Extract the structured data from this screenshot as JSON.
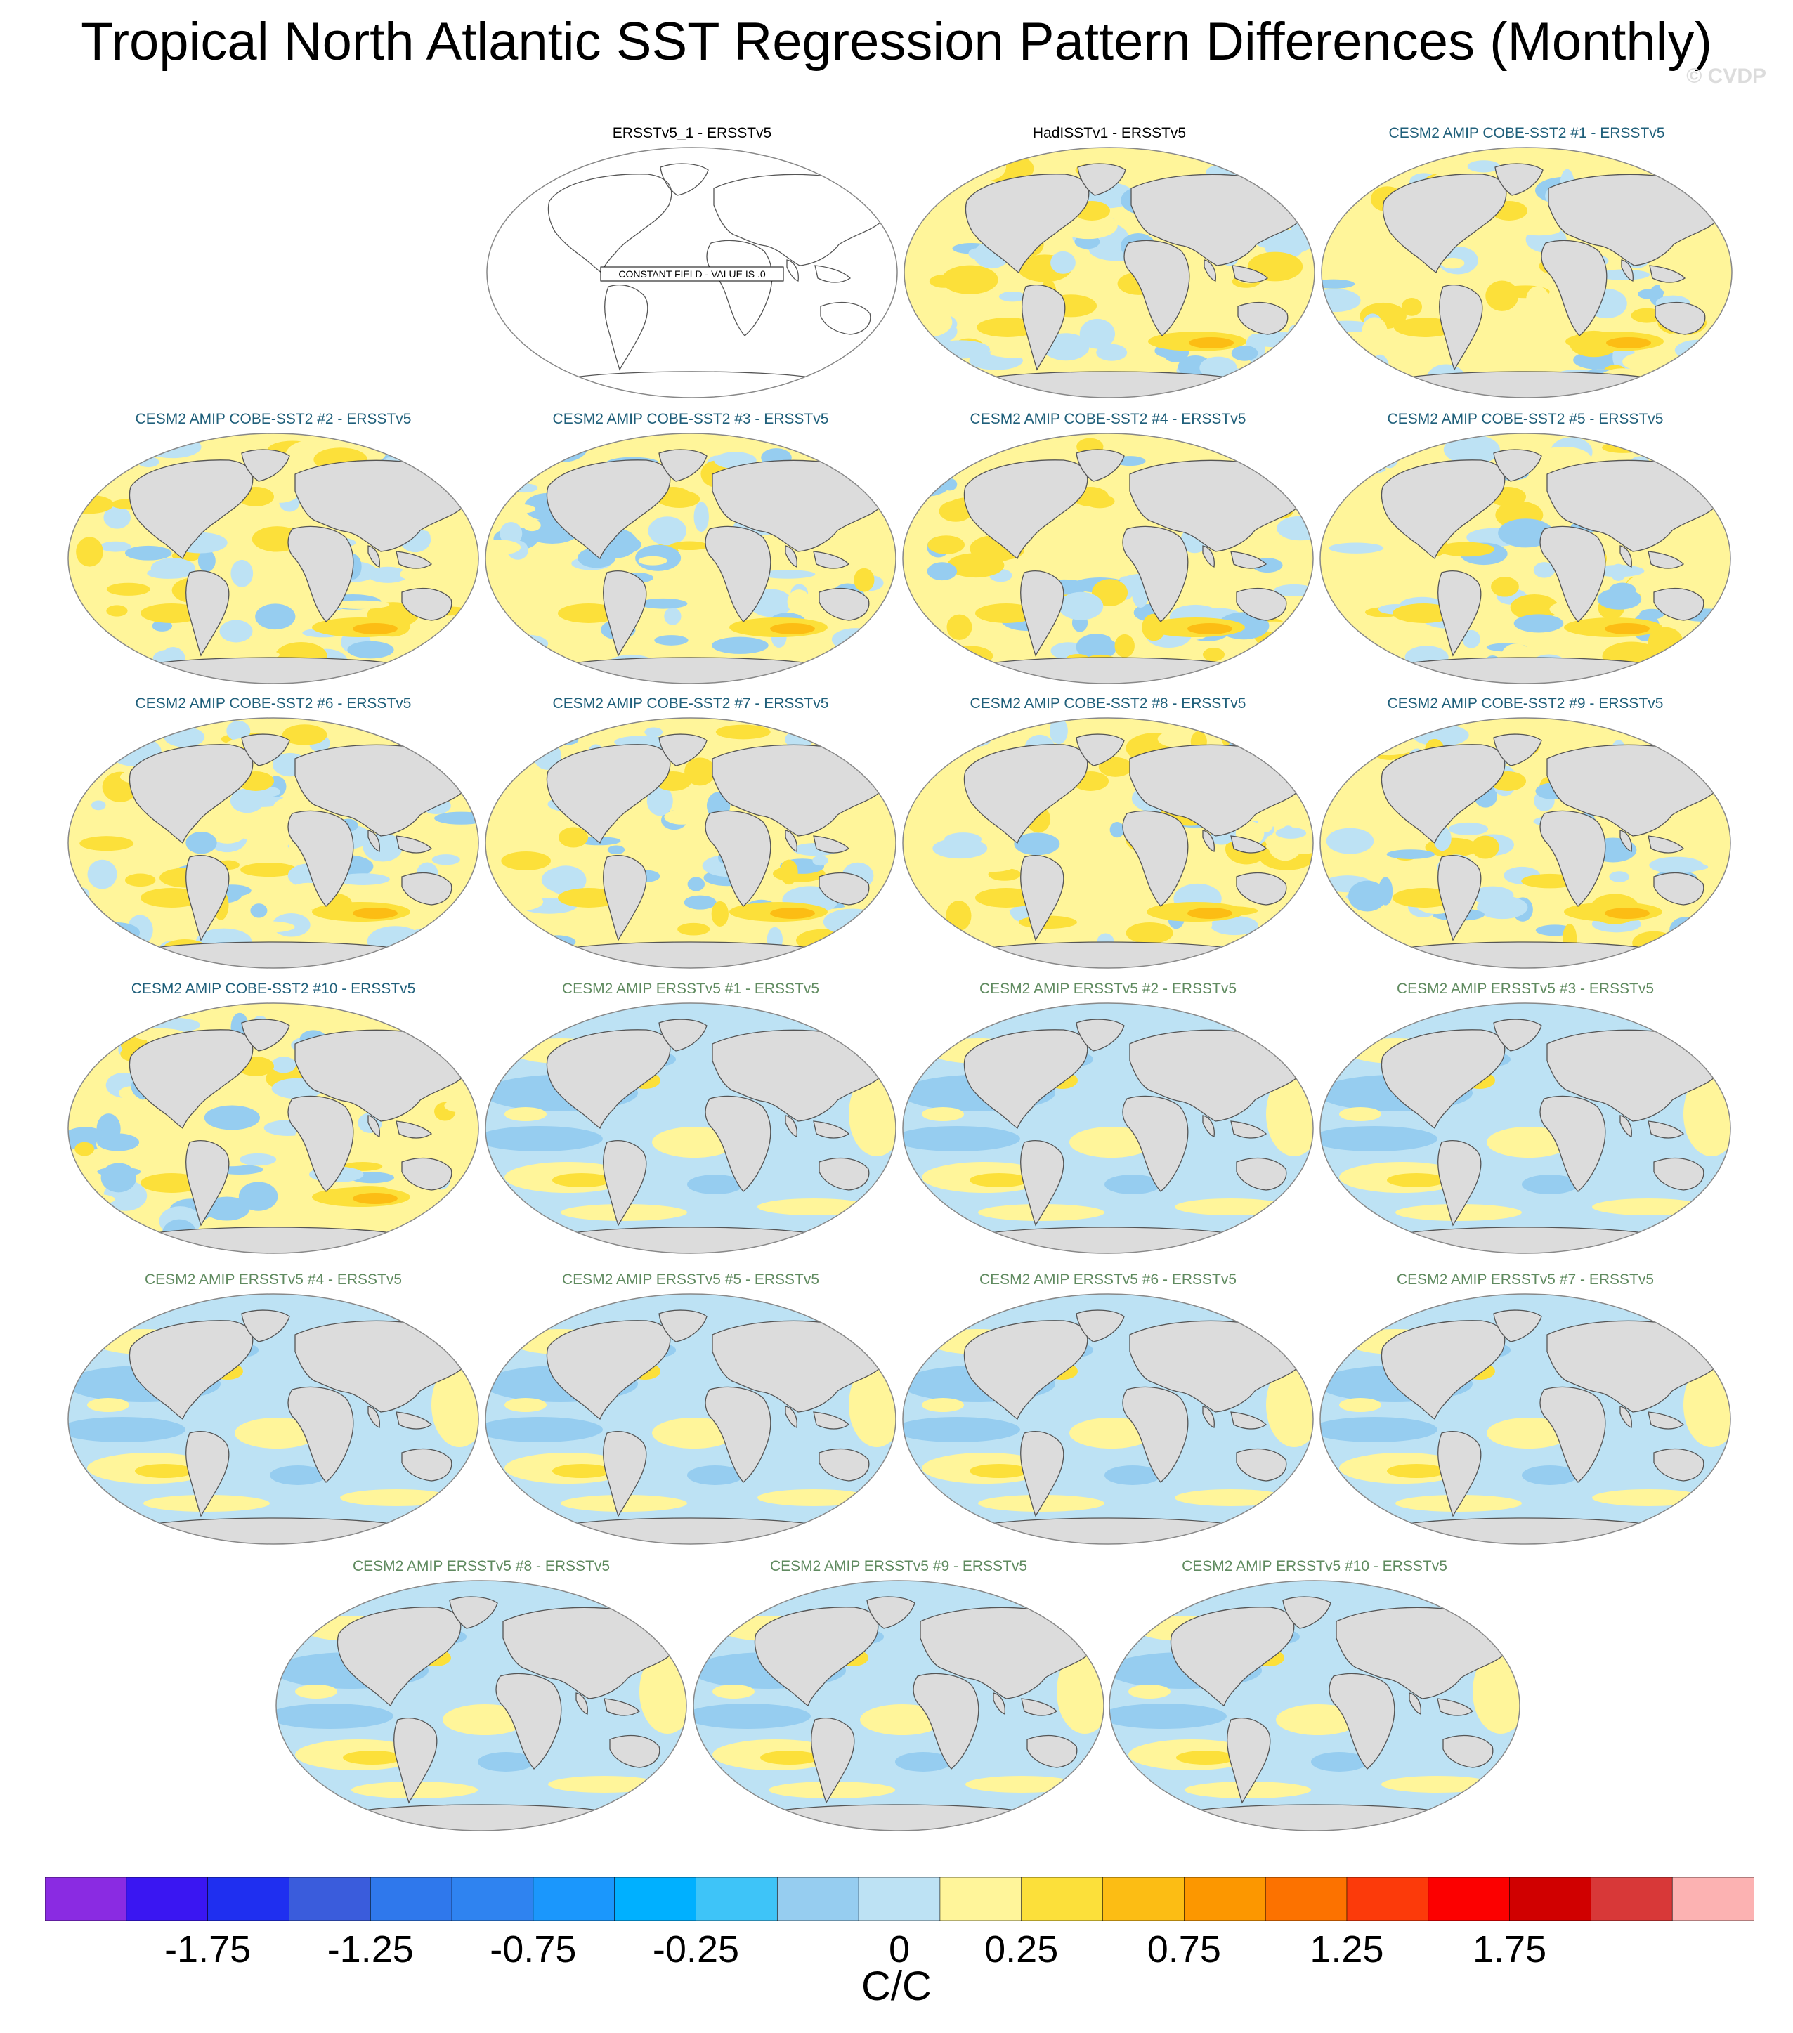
{
  "title": "Tropical North Atlantic SST Regression Pattern Differences (Monthly)",
  "watermark": "© CVDP",
  "panels": [
    {
      "label": "ERSSTv5_1 - ERSSTv5",
      "color": "#000000",
      "kind": "constant",
      "note": "CONSTANT FIELD - VALUE IS .0"
    },
    {
      "label": "HadISSTv1 - ERSSTv5",
      "color": "#000000",
      "kind": "noisy"
    },
    {
      "label": "CESM2 AMIP COBE-SST2 #1 - ERSSTv5",
      "color": "#1f5f7a",
      "kind": "noisy"
    },
    {
      "label": "CESM2 AMIP COBE-SST2 #2 - ERSSTv5",
      "color": "#1f5f7a",
      "kind": "noisy"
    },
    {
      "label": "CESM2 AMIP COBE-SST2 #3 - ERSSTv5",
      "color": "#1f5f7a",
      "kind": "noisy"
    },
    {
      "label": "CESM2 AMIP COBE-SST2 #4 - ERSSTv5",
      "color": "#1f5f7a",
      "kind": "noisy"
    },
    {
      "label": "CESM2 AMIP COBE-SST2 #5 - ERSSTv5",
      "color": "#1f5f7a",
      "kind": "noisy"
    },
    {
      "label": "CESM2 AMIP COBE-SST2 #6 - ERSSTv5",
      "color": "#1f5f7a",
      "kind": "noisy"
    },
    {
      "label": "CESM2 AMIP COBE-SST2 #7 - ERSSTv5",
      "color": "#1f5f7a",
      "kind": "noisy"
    },
    {
      "label": "CESM2 AMIP COBE-SST2 #8 - ERSSTv5",
      "color": "#1f5f7a",
      "kind": "noisy"
    },
    {
      "label": "CESM2 AMIP COBE-SST2 #9 - ERSSTv5",
      "color": "#1f5f7a",
      "kind": "noisy"
    },
    {
      "label": "CESM2 AMIP COBE-SST2 #10 - ERSSTv5",
      "color": "#1f5f7a",
      "kind": "noisy"
    },
    {
      "label": "CESM2 AMIP ERSSTv5 #1 - ERSSTv5",
      "color": "#5f8a5f",
      "kind": "smooth"
    },
    {
      "label": "CESM2 AMIP ERSSTv5 #2 - ERSSTv5",
      "color": "#5f8a5f",
      "kind": "smooth"
    },
    {
      "label": "CESM2 AMIP ERSSTv5 #3 - ERSSTv5",
      "color": "#5f8a5f",
      "kind": "smooth"
    },
    {
      "label": "CESM2 AMIP ERSSTv5 #4 - ERSSTv5",
      "color": "#5f8a5f",
      "kind": "smooth"
    },
    {
      "label": "CESM2 AMIP ERSSTv5 #5 - ERSSTv5",
      "color": "#5f8a5f",
      "kind": "smooth"
    },
    {
      "label": "CESM2 AMIP ERSSTv5 #6 - ERSSTv5",
      "color": "#5f8a5f",
      "kind": "smooth"
    },
    {
      "label": "CESM2 AMIP ERSSTv5 #7 - ERSSTv5",
      "color": "#5f8a5f",
      "kind": "smooth"
    },
    {
      "label": "CESM2 AMIP ERSSTv5 #8 - ERSSTv5",
      "color": "#5f8a5f",
      "kind": "smooth"
    },
    {
      "label": "CESM2 AMIP ERSSTv5 #9 - ERSSTv5",
      "color": "#5f8a5f",
      "kind": "smooth"
    },
    {
      "label": "CESM2 AMIP ERSSTv5 #10 - ERSSTv5",
      "color": "#5f8a5f",
      "kind": "smooth"
    }
  ],
  "colorbar": {
    "colors": [
      "#8a2be2",
      "#3a16f2",
      "#1f2ff0",
      "#3a5cdc",
      "#2f78ec",
      "#2f83f0",
      "#1b97fc",
      "#00b0ff",
      "#3ec4f8",
      "#96cdf0",
      "#bde2f4",
      "#fff59a",
      "#fce03a",
      "#fcbd14",
      "#fc9700",
      "#fc7200",
      "#fc3a0a",
      "#fc0000",
      "#d00000",
      "#d83838",
      "#fcb2b2"
    ],
    "tick_labels": [
      "-1.75",
      "-1.25",
      "-0.75",
      "-0.25",
      "0",
      "0.25",
      "0.75",
      "1.25",
      "1.75"
    ],
    "units": "C/C"
  }
}
